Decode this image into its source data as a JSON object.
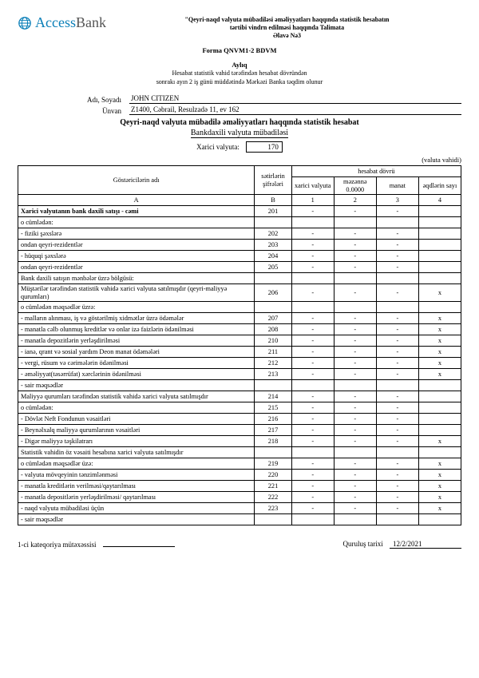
{
  "logo": {
    "access": "Access",
    "bank": "Bank"
  },
  "header": {
    "line1": "\"Qeyri-naqd valyuta mübadiləsi əməliyyatları haqqında statistik hesabatın",
    "line2": "tərtibi vindrn edilməsi haqqında Talimata",
    "line3": "Əlavə Nə3"
  },
  "form": {
    "title": "Forma QNVM1-2 BDVM",
    "period": "Aylıq",
    "sub1": "Hesabat statistik vahid tərəfindən hesabat dövründən",
    "sub2": "sonrakı ayın 2 iş günü müddətində Mərkəzi Banka təqdim olunur"
  },
  "person": {
    "name_label": "Adı, Soyadı",
    "name": "JOHN CITIZEN",
    "addr_label": "Ünvan",
    "addr": "Z1400, Cəbrail, Resulzadə 11, ev 162"
  },
  "titles": {
    "main": "Qeyri-naqd valyuta mübadilə əməliyyatları haqqında statistik hesabat",
    "sub": "Bankdaxili valyuta mübadiləsi",
    "xarici_label": "Xarici valyuta:",
    "xarici_val": "170",
    "unit": "(valuta vahidi)"
  },
  "thead": {
    "gostericilar": "Göstəricilərin adı",
    "setirlerin": "sətirlərin şifrələri",
    "hesabat_dovru": "hesabat dövrü",
    "xarici_valyuta": "xarici valyuta",
    "mezenne": "məzənnə 0.0000",
    "manat": "manat",
    "eqdlarin": "əqdlərin sayı",
    "A": "A",
    "B": "B",
    "c1": "1",
    "c2": "2",
    "c3": "3",
    "c4": "4"
  },
  "rows": [
    {
      "label": "Xarici valyutanın bank daxili satışı - cəmi",
      "code": "201",
      "c1": "-",
      "c2": "-",
      "c3": "-",
      "c4": "",
      "bold": true
    },
    {
      "label": "o cümlədən:",
      "code": "",
      "c1": "",
      "c2": "",
      "c3": "",
      "c4": ""
    },
    {
      "label": "- fiziki şəxslərə",
      "code": "202",
      "c1": "-",
      "c2": "-",
      "c3": "-",
      "c4": ""
    },
    {
      "label": "ondan qeyri-rezidentlər",
      "code": "203",
      "c1": "-",
      "c2": "-",
      "c3": "-",
      "c4": ""
    },
    {
      "label": "- hüquqi şəxslərə",
      "code": "204",
      "c1": "-",
      "c2": "-",
      "c3": "-",
      "c4": ""
    },
    {
      "label": "ondan qeyri-rezidentlər",
      "code": "205",
      "c1": "-",
      "c2": "-",
      "c3": "-",
      "c4": ""
    },
    {
      "label": "Bank daxili satışın mənbələr üzrə bölgüsü:",
      "code": "",
      "c1": "",
      "c2": "",
      "c3": "",
      "c4": ""
    },
    {
      "label": "Müştərilər tərəfindən statistik vahidə xarici valyuta satılmışdır (qeyri-maliyyə qurumları)",
      "code": "206",
      "c1": "-",
      "c2": "-",
      "c3": "-",
      "c4": "x"
    },
    {
      "label": "o cümlədən məqsədlər üzrə:",
      "code": "",
      "c1": "",
      "c2": "",
      "c3": "",
      "c4": ""
    },
    {
      "label": "- malların alınması, iş və göstərilmiş xidmətlər üzrə ödəmələr",
      "code": "207",
      "c1": "-",
      "c2": "-",
      "c3": "-",
      "c4": "x"
    },
    {
      "label": "- manatla cəlb olunmuş kreditlər və onlar izə faizlərin ödənilməsi",
      "code": "208",
      "c1": "-",
      "c2": "-",
      "c3": "-",
      "c4": "x"
    },
    {
      "label": "- manatla depozitlərin yerləşdirilməsi",
      "code": "210",
      "c1": "-",
      "c2": "-",
      "c3": "-",
      "c4": "x"
    },
    {
      "label": "- ianə, qrant və sosial yardım Deon manat ödəmələri",
      "code": "211",
      "c1": "-",
      "c2": "-",
      "c3": "-",
      "c4": "x"
    },
    {
      "label": "- vergi, rüsum və cərimələrin ödənilməsi",
      "code": "212",
      "c1": "-",
      "c2": "-",
      "c3": "-",
      "c4": "x"
    },
    {
      "label": "- əməliyyat(təsərrüfat) xərclərinin ödənilməsi",
      "code": "213",
      "c1": "-",
      "c2": "-",
      "c3": "-",
      "c4": "x"
    },
    {
      "label": "- sair məqsədlər",
      "code": "",
      "c1": "",
      "c2": "",
      "c3": "",
      "c4": ""
    },
    {
      "label": "Maliyyə qurumları tərəfindən statistik vahidə xarici valyuta satılmışdır",
      "code": "214",
      "c1": "-",
      "c2": "-",
      "c3": "-",
      "c4": ""
    },
    {
      "label": "o cümlədən:",
      "code": "215",
      "c1": "-",
      "c2": "-",
      "c3": "-",
      "c4": ""
    },
    {
      "label": "- Dövlət Neft Fondunun vəsaitləri",
      "code": "216",
      "c1": "-",
      "c2": "-",
      "c3": "-",
      "c4": ""
    },
    {
      "label": "- Beynəlxalq maliyyə qurumlarının vəsaitləri",
      "code": "217",
      "c1": "-",
      "c2": "-",
      "c3": "-",
      "c4": ""
    },
    {
      "label": "- Digər maliyyə təşkilatrarı",
      "code": "218",
      "c1": "-",
      "c2": "-",
      "c3": "-",
      "c4": "x"
    },
    {
      "label": "Statistik vahidin öz vəsaiti hesabına xarici valyuta satılmışdır",
      "code": "",
      "c1": "",
      "c2": "",
      "c3": "",
      "c4": ""
    },
    {
      "label": "o cümlədən məqsədlər üzə:",
      "code": "219",
      "c1": "-",
      "c2": "-",
      "c3": "-",
      "c4": "x"
    },
    {
      "label": "- valyuta mövqeyinin tənzimlənməsi",
      "code": "220",
      "c1": "-",
      "c2": "-",
      "c3": "-",
      "c4": "x"
    },
    {
      "label": "- manatla kreditlərin verilməsi/qaytarılması",
      "code": "221",
      "c1": "-",
      "c2": "-",
      "c3": "-",
      "c4": "x"
    },
    {
      "label": "- manatla depositlərin yerləşdirilməsi/ qaytarılması",
      "code": "222",
      "c1": "-",
      "c2": "-",
      "c3": "-",
      "c4": "x"
    },
    {
      "label": "- naqd valyuta mübadiləsi üçün",
      "code": "223",
      "c1": "-",
      "c2": "-",
      "c3": "-",
      "c4": "x"
    },
    {
      "label": "- sair məqsədlər",
      "code": "",
      "c1": "",
      "c2": "",
      "c3": "",
      "c4": ""
    }
  ],
  "footer": {
    "left": "1-ci kateqoriya mütəxəssisi",
    "mid_label": "Quruluş tarixi",
    "date": "12/2/2021"
  }
}
